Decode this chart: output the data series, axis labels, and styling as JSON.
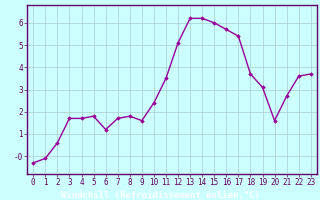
{
  "x": [
    0,
    1,
    2,
    3,
    4,
    5,
    6,
    7,
    8,
    9,
    10,
    11,
    12,
    13,
    14,
    15,
    16,
    17,
    18,
    19,
    20,
    21,
    22,
    23
  ],
  "y": [
    -0.3,
    -0.1,
    0.6,
    1.7,
    1.7,
    1.8,
    1.2,
    1.7,
    1.8,
    1.6,
    2.4,
    3.5,
    5.1,
    6.2,
    6.2,
    6.0,
    5.7,
    5.4,
    3.7,
    3.1,
    1.6,
    2.7,
    3.6,
    3.7
  ],
  "line_color": "#990099",
  "marker": "D",
  "marker_size": 1.8,
  "bg_color": "#ccffff",
  "grid_color": "#aacccc",
  "border_color": "#660066",
  "xlabel": "Windchill (Refroidissement éolien,°C)",
  "xlim": [
    -0.5,
    23.5
  ],
  "ylim": [
    -0.8,
    6.8
  ],
  "xticks": [
    0,
    1,
    2,
    3,
    4,
    5,
    6,
    7,
    8,
    9,
    10,
    11,
    12,
    13,
    14,
    15,
    16,
    17,
    18,
    19,
    20,
    21,
    22,
    23
  ],
  "yticks": [
    0,
    1,
    2,
    3,
    4,
    5,
    6
  ],
  "ytick_labels": [
    "-0",
    "1",
    "2",
    "3",
    "4",
    "5",
    "6"
  ],
  "tick_fontsize": 5.5,
  "xlabel_fontsize": 6.5,
  "line_width": 1.0,
  "bottom_bar_color": "#660066",
  "bottom_bar_height": 0.055
}
